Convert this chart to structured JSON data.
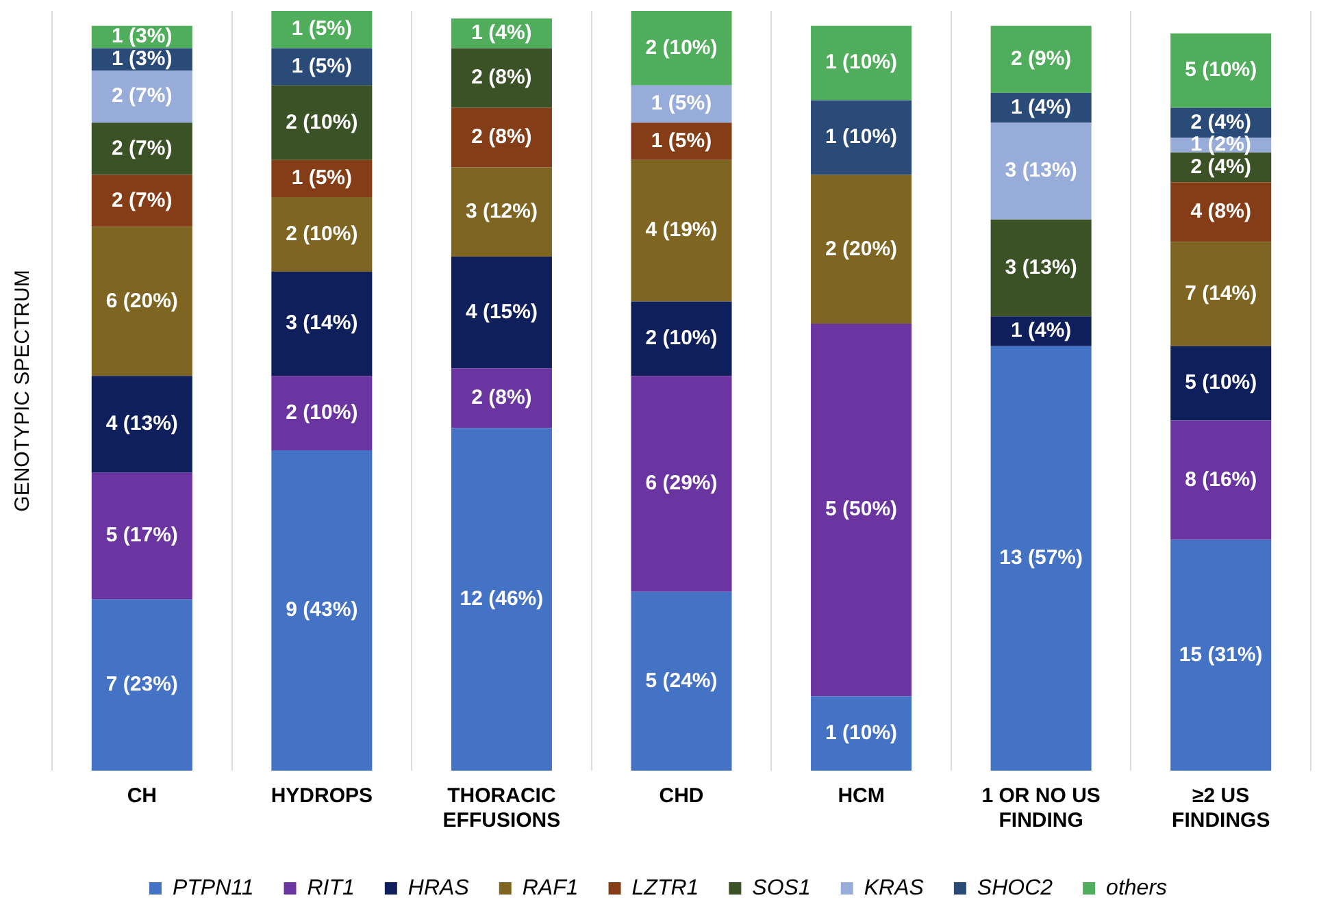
{
  "chart_data": {
    "type": "bar",
    "stacked": true,
    "ylabel": "GENOTYPIC SPECTRUM",
    "categories": [
      "CH",
      "HYDROPS",
      "THORACIC EFFUSIONS",
      "CHD",
      "HCM",
      "1 OR NO US FINDING",
      "≥2 US FINDINGS"
    ],
    "ylim": [
      0,
      102
    ],
    "tick_labels": "x",
    "grid": "x",
    "legend": "bottom",
    "series": [
      {
        "name": "PTPN11",
        "color": "#4472c4",
        "values": [
          23,
          43,
          46,
          24,
          10,
          57,
          31
        ],
        "value_labels": [
          "7 (23%)",
          "9 (43%)",
          "12 (46%)",
          "5 (24%)",
          "1 (10%)",
          "13 (57%)",
          "15 (31%)"
        ]
      },
      {
        "name": "RIT1",
        "color": "#6a35a0",
        "values": [
          17,
          10,
          8,
          29,
          50,
          null,
          16
        ],
        "value_labels": [
          "5 (17%)",
          "2 (10%)",
          "2 (8%)",
          "6 (29%)",
          "5 (50%)",
          null,
          "8 (16%)"
        ]
      },
      {
        "name": "HRAS",
        "color": "#0e1f5b",
        "values": [
          13,
          14,
          15,
          10,
          null,
          4,
          10
        ],
        "value_labels": [
          "4 (13%)",
          "3 (14%)",
          "4 (15%)",
          "2 (10%)",
          null,
          "1 (4%)",
          "5 (10%)"
        ]
      },
      {
        "name": "RAF1",
        "color": "#7e6522",
        "values": [
          20,
          10,
          12,
          19,
          20,
          null,
          14
        ],
        "value_labels": [
          "6 (20%)",
          "2 (10%)",
          "3 (12%)",
          "4 (19%)",
          "2 (20%)",
          null,
          "7 (14%)"
        ]
      },
      {
        "name": "LZTR1",
        "color": "#853d18",
        "values": [
          7,
          5,
          8,
          5,
          null,
          null,
          8
        ],
        "value_labels": [
          "2 (7%)",
          "1 (5%)",
          "2 (8%)",
          "1 (5%)",
          null,
          null,
          "4 (8%)"
        ]
      },
      {
        "name": "SOS1",
        "color": "#3a5226",
        "values": [
          7,
          10,
          8,
          null,
          null,
          13,
          4
        ],
        "value_labels": [
          "2 (7%)",
          "2 (10%)",
          "2 (8%)",
          null,
          null,
          "3 (13%)",
          "2 (4%)"
        ]
      },
      {
        "name": "KRAS",
        "color": "#98acd9",
        "values": [
          7,
          null,
          null,
          5,
          null,
          13,
          2
        ],
        "value_labels": [
          "2 (7%)",
          null,
          null,
          "1 (5%)",
          null,
          "3 (13%)",
          "1 (2%)"
        ]
      },
      {
        "name": "SHOC2",
        "color": "#2a4a78",
        "values": [
          3,
          5,
          null,
          null,
          10,
          4,
          4
        ],
        "value_labels": [
          "1 (3%)",
          "1 (5%)",
          null,
          null,
          "1 (10%)",
          "1 (4%)",
          "2 (4%)"
        ]
      },
      {
        "name": "others",
        "color": "#4fad5b",
        "values": [
          3,
          5,
          4,
          10,
          10,
          9,
          10
        ],
        "value_labels": [
          "1 (3%)",
          "1 (5%)",
          "1 (4%)",
          "2 (10%)",
          "1 (10%)",
          "2 (9%)",
          "5 (10%)"
        ]
      }
    ]
  }
}
